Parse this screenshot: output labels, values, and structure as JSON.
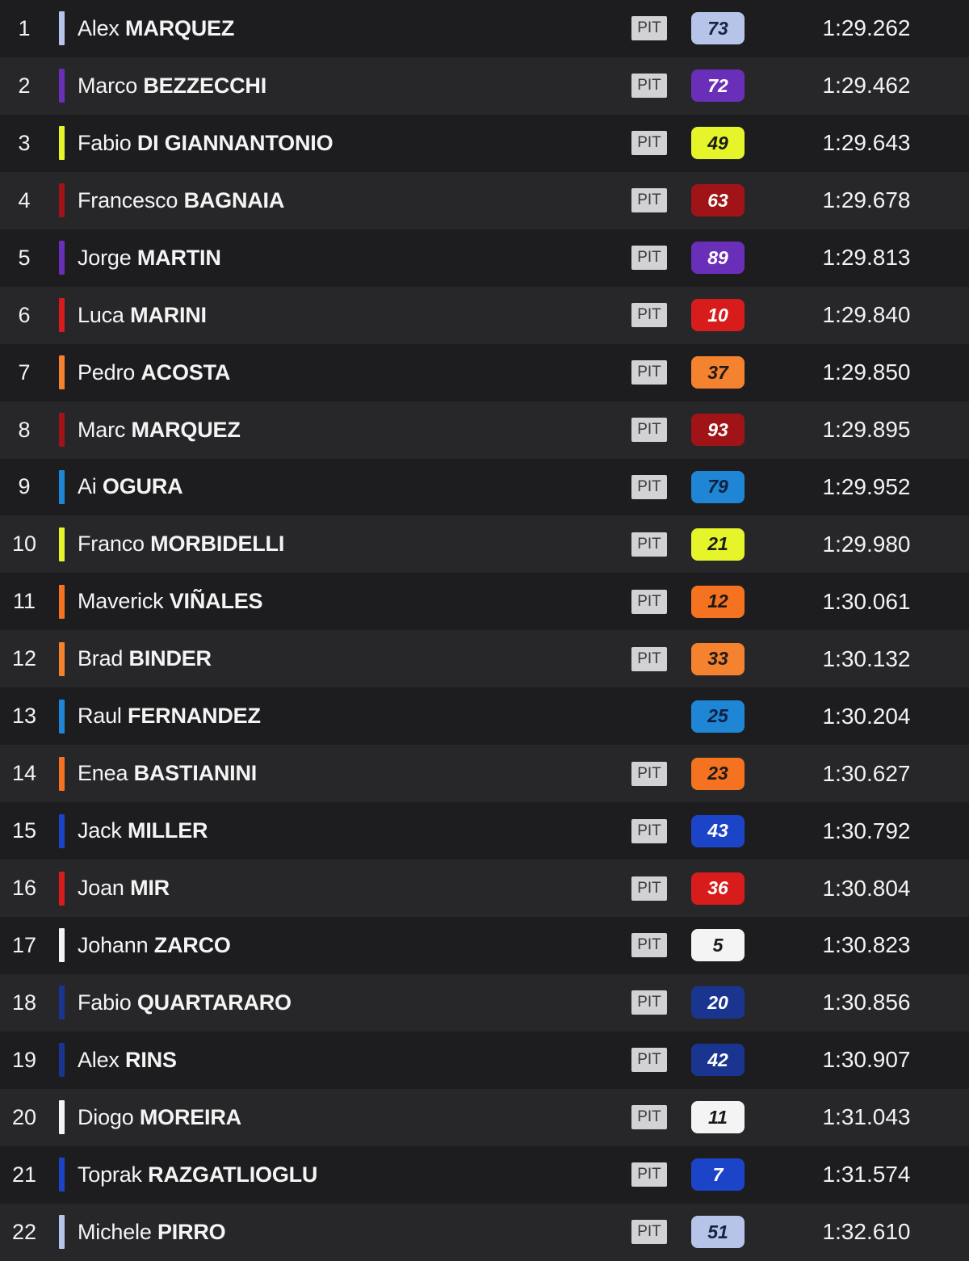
{
  "pit_label": "PIT",
  "riders": [
    {
      "pos": "1",
      "first": "Alex",
      "last": "MARQUEZ",
      "pit": true,
      "number": "73",
      "team_color": "#b7c4ea",
      "badge_bg": "#b7c4ea",
      "badge_fg": "#1a2240",
      "time": "1:29.262"
    },
    {
      "pos": "2",
      "first": "Marco",
      "last": "BEZZECCHI",
      "pit": true,
      "number": "72",
      "team_color": "#6a2fb8",
      "badge_bg": "#6a2fb8",
      "badge_fg": "#ffffff",
      "time": "1:29.462"
    },
    {
      "pos": "3",
      "first": "Fabio",
      "last": "DI GIANNANTONIO",
      "pit": true,
      "number": "49",
      "team_color": "#e6f52a",
      "badge_bg": "#e6f52a",
      "badge_fg": "#1a1a1a",
      "time": "1:29.643"
    },
    {
      "pos": "4",
      "first": "Francesco",
      "last": "BAGNAIA",
      "pit": true,
      "number": "63",
      "team_color": "#a01418",
      "badge_bg": "#a01418",
      "badge_fg": "#ffffff",
      "time": "1:29.678"
    },
    {
      "pos": "5",
      "first": "Jorge",
      "last": "MARTIN",
      "pit": true,
      "number": "89",
      "team_color": "#6a2fb8",
      "badge_bg": "#6a2fb8",
      "badge_fg": "#ffffff",
      "time": "1:29.813"
    },
    {
      "pos": "6",
      "first": "Luca",
      "last": "MARINI",
      "pit": true,
      "number": "10",
      "team_color": "#d81c1c",
      "badge_bg": "#d81c1c",
      "badge_fg": "#ffffff",
      "time": "1:29.840"
    },
    {
      "pos": "7",
      "first": "Pedro",
      "last": "ACOSTA",
      "pit": true,
      "number": "37",
      "team_color": "#f5822e",
      "badge_bg": "#f5822e",
      "badge_fg": "#1a1a1a",
      "time": "1:29.850"
    },
    {
      "pos": "8",
      "first": "Marc",
      "last": "MARQUEZ",
      "pit": true,
      "number": "93",
      "team_color": "#a01418",
      "badge_bg": "#a01418",
      "badge_fg": "#ffffff",
      "time": "1:29.895"
    },
    {
      "pos": "9",
      "first": "Ai",
      "last": "OGURA",
      "pit": true,
      "number": "79",
      "team_color": "#1f86d6",
      "badge_bg": "#1f86d6",
      "badge_fg": "#102040",
      "time": "1:29.952"
    },
    {
      "pos": "10",
      "first": "Franco",
      "last": "MORBIDELLI",
      "pit": true,
      "number": "21",
      "team_color": "#e6f52a",
      "badge_bg": "#e6f52a",
      "badge_fg": "#1a1a1a",
      "time": "1:29.980"
    },
    {
      "pos": "11",
      "first": "Maverick",
      "last": "VIÑALES",
      "pit": true,
      "number": "12",
      "team_color": "#f57320",
      "badge_bg": "#f57320",
      "badge_fg": "#1a1a1a",
      "time": "1:30.061"
    },
    {
      "pos": "12",
      "first": "Brad",
      "last": "BINDER",
      "pit": true,
      "number": "33",
      "team_color": "#f5822e",
      "badge_bg": "#f5822e",
      "badge_fg": "#1a1a1a",
      "time": "1:30.132"
    },
    {
      "pos": "13",
      "first": "Raul",
      "last": "FERNANDEZ",
      "pit": false,
      "number": "25",
      "team_color": "#1f86d6",
      "badge_bg": "#1f86d6",
      "badge_fg": "#102040",
      "time": "1:30.204"
    },
    {
      "pos": "14",
      "first": "Enea",
      "last": "BASTIANINI",
      "pit": true,
      "number": "23",
      "team_color": "#f57320",
      "badge_bg": "#f57320",
      "badge_fg": "#1a1a1a",
      "time": "1:30.627"
    },
    {
      "pos": "15",
      "first": "Jack",
      "last": "MILLER",
      "pit": true,
      "number": "43",
      "team_color": "#1c44c8",
      "badge_bg": "#1c44c8",
      "badge_fg": "#ffffff",
      "time": "1:30.792"
    },
    {
      "pos": "16",
      "first": "Joan",
      "last": "MIR",
      "pit": true,
      "number": "36",
      "team_color": "#d81c1c",
      "badge_bg": "#d81c1c",
      "badge_fg": "#ffffff",
      "time": "1:30.804"
    },
    {
      "pos": "17",
      "first": "Johann",
      "last": "ZARCO",
      "pit": true,
      "number": "5",
      "team_color": "#f4f4f4",
      "badge_bg": "#f4f4f4",
      "badge_fg": "#1a1a1a",
      "time": "1:30.823"
    },
    {
      "pos": "18",
      "first": "Fabio",
      "last": "QUARTARARO",
      "pit": true,
      "number": "20",
      "team_color": "#1a3590",
      "badge_bg": "#1a3590",
      "badge_fg": "#ffffff",
      "time": "1:30.856"
    },
    {
      "pos": "19",
      "first": "Alex",
      "last": "RINS",
      "pit": true,
      "number": "42",
      "team_color": "#1a3590",
      "badge_bg": "#1a3590",
      "badge_fg": "#ffffff",
      "time": "1:30.907"
    },
    {
      "pos": "20",
      "first": "Diogo",
      "last": "MOREIRA",
      "pit": true,
      "number": "11",
      "team_color": "#f4f4f4",
      "badge_bg": "#f4f4f4",
      "badge_fg": "#1a1a1a",
      "time": "1:31.043"
    },
    {
      "pos": "21",
      "first": "Toprak",
      "last": "RAZGATLIOGLU",
      "pit": true,
      "number": "7",
      "team_color": "#1c44c8",
      "badge_bg": "#1c44c8",
      "badge_fg": "#ffffff",
      "time": "1:31.574"
    },
    {
      "pos": "22",
      "first": "Michele",
      "last": "PIRRO",
      "pit": true,
      "number": "51",
      "team_color": "#b7c4ea",
      "badge_bg": "#b7c4ea",
      "badge_fg": "#1a2240",
      "time": "1:32.610"
    }
  ]
}
